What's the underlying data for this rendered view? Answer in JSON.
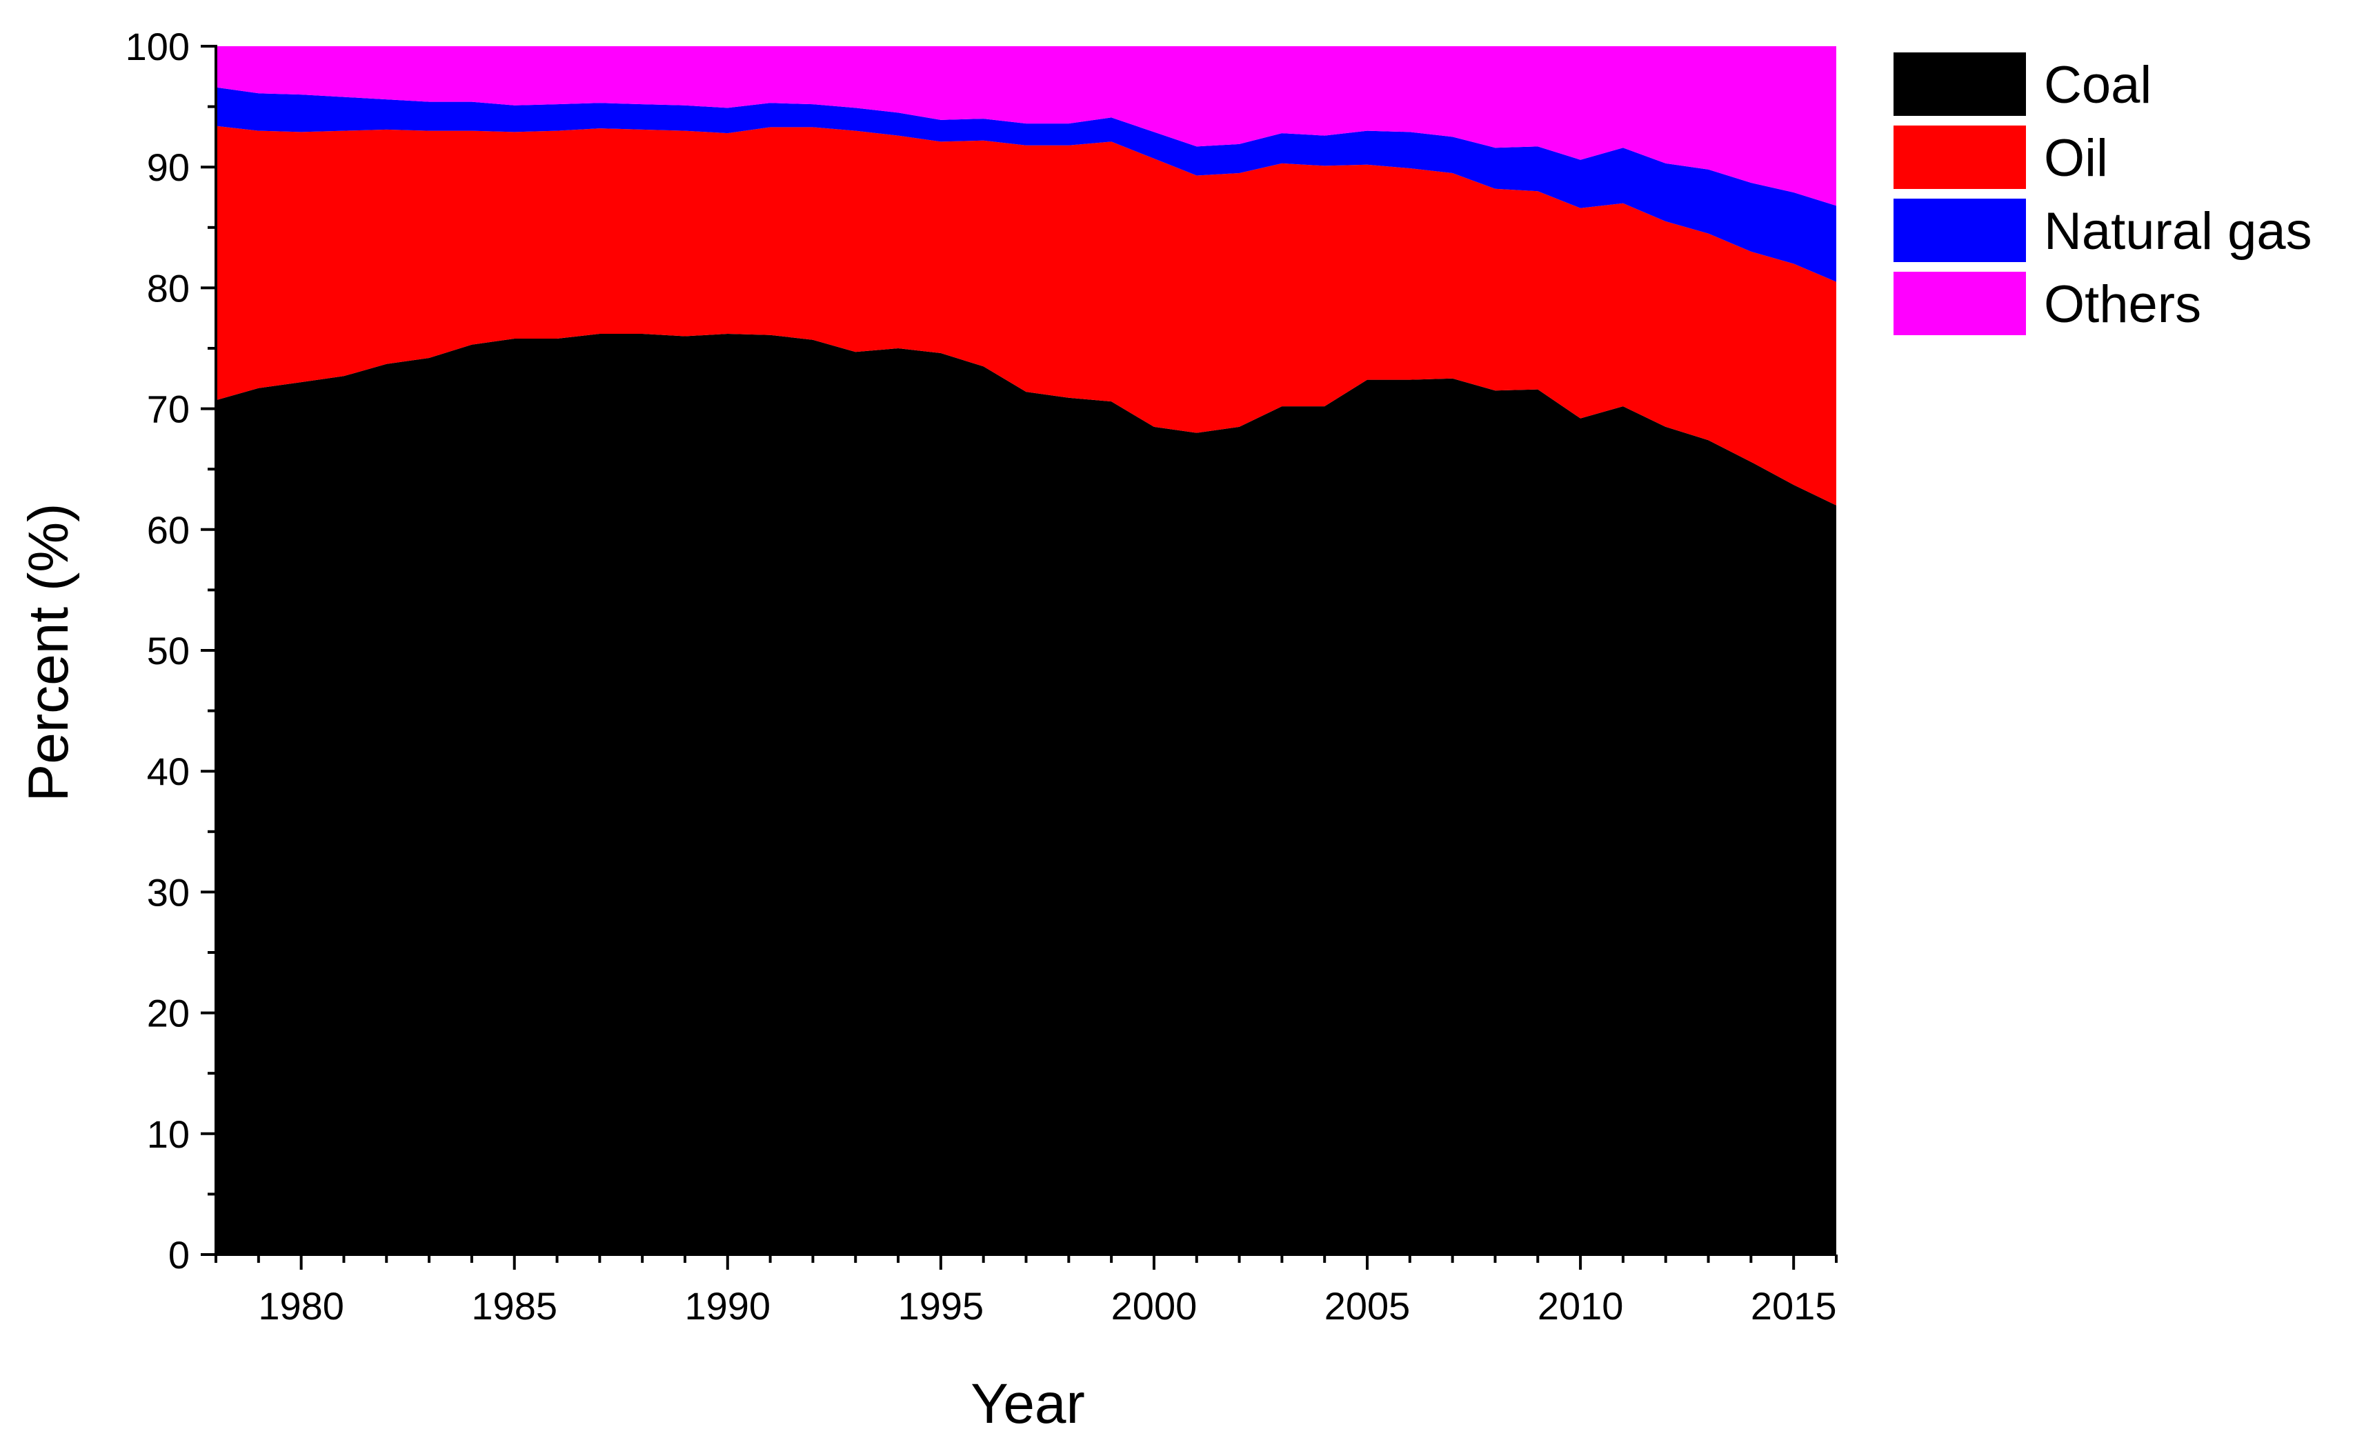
{
  "chart_data": {
    "type": "area",
    "stacked": true,
    "xlabel": "Year",
    "ylabel": "Percent (%)",
    "xlim": [
      1978,
      2016
    ],
    "ylim": [
      0,
      100
    ],
    "x_ticks": [
      1980,
      1985,
      1990,
      1995,
      2000,
      2005,
      2010,
      2015
    ],
    "y_ticks": [
      0,
      10,
      20,
      30,
      40,
      50,
      60,
      70,
      80,
      90,
      100
    ],
    "legend_position": "top-right, outside plot",
    "x": [
      1978,
      1979,
      1980,
      1981,
      1982,
      1983,
      1984,
      1985,
      1986,
      1987,
      1988,
      1989,
      1990,
      1991,
      1992,
      1993,
      1994,
      1995,
      1996,
      1997,
      1998,
      1999,
      2000,
      2001,
      2002,
      2003,
      2004,
      2005,
      2006,
      2007,
      2008,
      2009,
      2010,
      2011,
      2012,
      2013,
      2014,
      2015,
      2016
    ],
    "series": [
      {
        "name": "Coal",
        "color": "#000000",
        "values": [
          70.7,
          71.7,
          72.2,
          72.7,
          73.7,
          74.2,
          75.3,
          75.8,
          75.8,
          76.2,
          76.2,
          76.0,
          76.2,
          76.1,
          75.7,
          74.7,
          75.0,
          74.6,
          73.5,
          71.4,
          70.9,
          70.6,
          68.5,
          68.0,
          68.5,
          70.2,
          70.2,
          72.4,
          72.4,
          72.5,
          71.5,
          71.6,
          69.2,
          70.2,
          68.5,
          67.4,
          65.6,
          63.7,
          62.0
        ]
      },
      {
        "name": "Oil",
        "color": "#ff0000",
        "values": [
          22.7,
          21.3,
          20.7,
          20.3,
          19.4,
          18.8,
          17.7,
          17.1,
          17.2,
          17.0,
          16.9,
          17.0,
          16.6,
          17.2,
          17.6,
          18.3,
          17.6,
          17.5,
          18.7,
          20.4,
          20.9,
          21.5,
          22.2,
          21.3,
          21.0,
          20.1,
          19.9,
          17.8,
          17.5,
          17.0,
          16.7,
          16.4,
          17.4,
          16.8,
          17.0,
          17.1,
          17.4,
          18.3,
          18.5
        ]
      },
      {
        "name": "Natural gas",
        "color": "#0000ff",
        "values": [
          3.2,
          3.1,
          3.1,
          2.8,
          2.5,
          2.4,
          2.4,
          2.2,
          2.2,
          2.1,
          2.1,
          2.1,
          2.1,
          2.0,
          1.9,
          1.9,
          1.9,
          1.8,
          1.8,
          1.8,
          1.8,
          2.0,
          2.2,
          2.4,
          2.4,
          2.5,
          2.5,
          2.8,
          3.0,
          3.0,
          3.4,
          3.7,
          4.0,
          4.6,
          4.8,
          5.3,
          5.7,
          5.9,
          6.3
        ]
      },
      {
        "name": "Others",
        "color": "#ff00ff",
        "values": [
          3.4,
          3.9,
          4.0,
          4.2,
          4.4,
          4.6,
          4.6,
          4.9,
          4.8,
          4.7,
          4.8,
          4.9,
          5.1,
          4.7,
          4.8,
          5.1,
          5.5,
          6.1,
          6.0,
          6.4,
          6.4,
          5.9,
          7.1,
          8.3,
          8.1,
          7.2,
          7.4,
          7.0,
          7.1,
          7.5,
          8.4,
          8.3,
          9.4,
          8.4,
          9.7,
          10.2,
          11.3,
          12.1,
          13.2
        ]
      }
    ]
  }
}
